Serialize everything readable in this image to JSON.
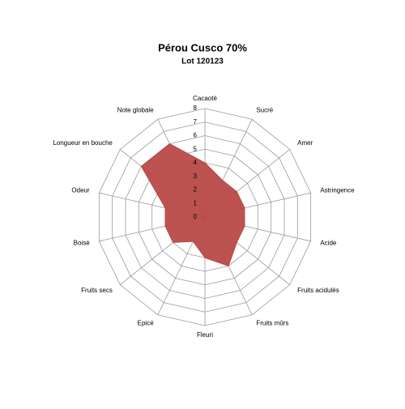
{
  "chart_data": {
    "type": "radar",
    "title": "Pérou Cusco 70%",
    "subtitle": "Lot 120123",
    "categories": [
      "Cacaoté",
      "Sucré",
      "Amer",
      "Astringence",
      "Acide",
      "Fruits acidulés",
      "Fruits mûrs",
      "Fleuri",
      "Epicé",
      "Fruits secs",
      "Boisé",
      "Odeur",
      "Longueur en bouche",
      "Note globale"
    ],
    "values": [
      4,
      3,
      3,
      3,
      3,
      3,
      4,
      3,
      2,
      3,
      3,
      3,
      6,
      6
    ],
    "color": "#b84a47",
    "ylim": [
      0,
      8
    ],
    "yticks": [
      0,
      1,
      2,
      3,
      4,
      5,
      6,
      7,
      8
    ],
    "grid": true
  }
}
